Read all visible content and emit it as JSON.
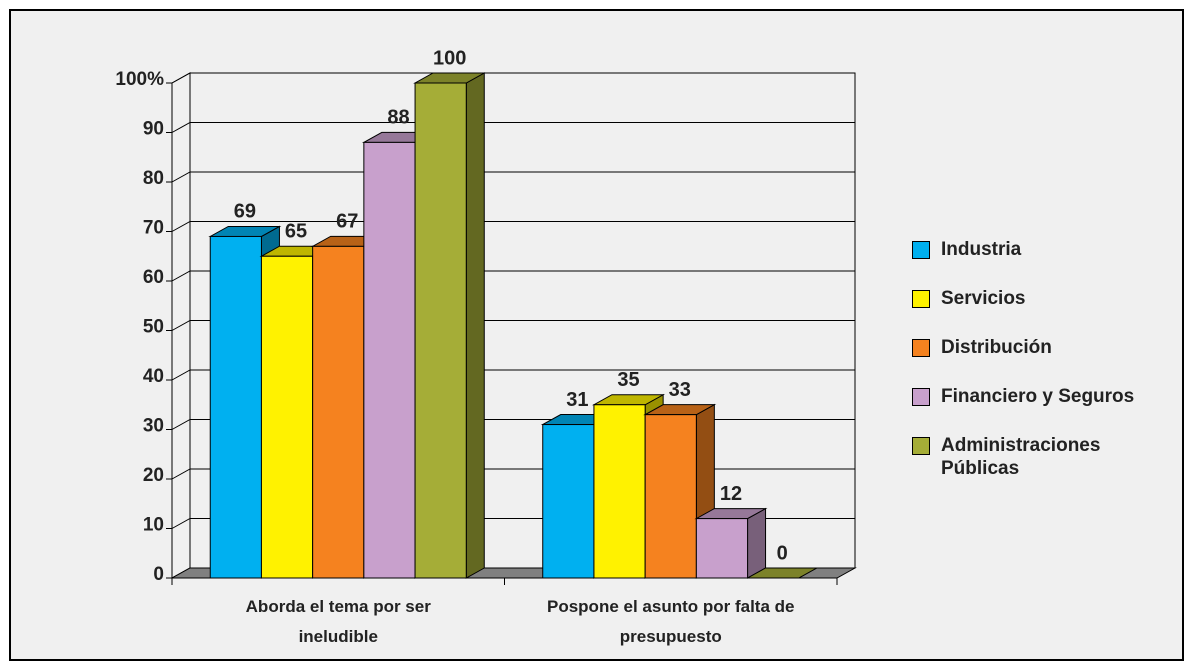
{
  "chart_data": {
    "type": "bar3d",
    "categories": [
      "Aborda el tema por ser ineludible",
      "Pospone el asunto por falta de presupuesto"
    ],
    "series": [
      {
        "name": "Industria",
        "color": "#00b0f0",
        "values": [
          69,
          31
        ]
      },
      {
        "name": "Servicios",
        "color": "#fff200",
        "values": [
          65,
          35
        ]
      },
      {
        "name": "Distribución",
        "color": "#f5821f",
        "values": [
          67,
          33
        ]
      },
      {
        "name": "Financiero y Seguros",
        "color": "#c8a0cc",
        "values": [
          88,
          12
        ]
      },
      {
        "name": "Administraciones Públicas",
        "color": "#a5ad37",
        "values": [
          100,
          0
        ]
      }
    ],
    "ylim": [
      0,
      100
    ],
    "yticks": [
      0,
      10,
      20,
      30,
      40,
      50,
      60,
      70,
      80,
      90,
      {
        "value": 100,
        "label": "100%"
      }
    ],
    "grid": true,
    "legend": "right"
  }
}
